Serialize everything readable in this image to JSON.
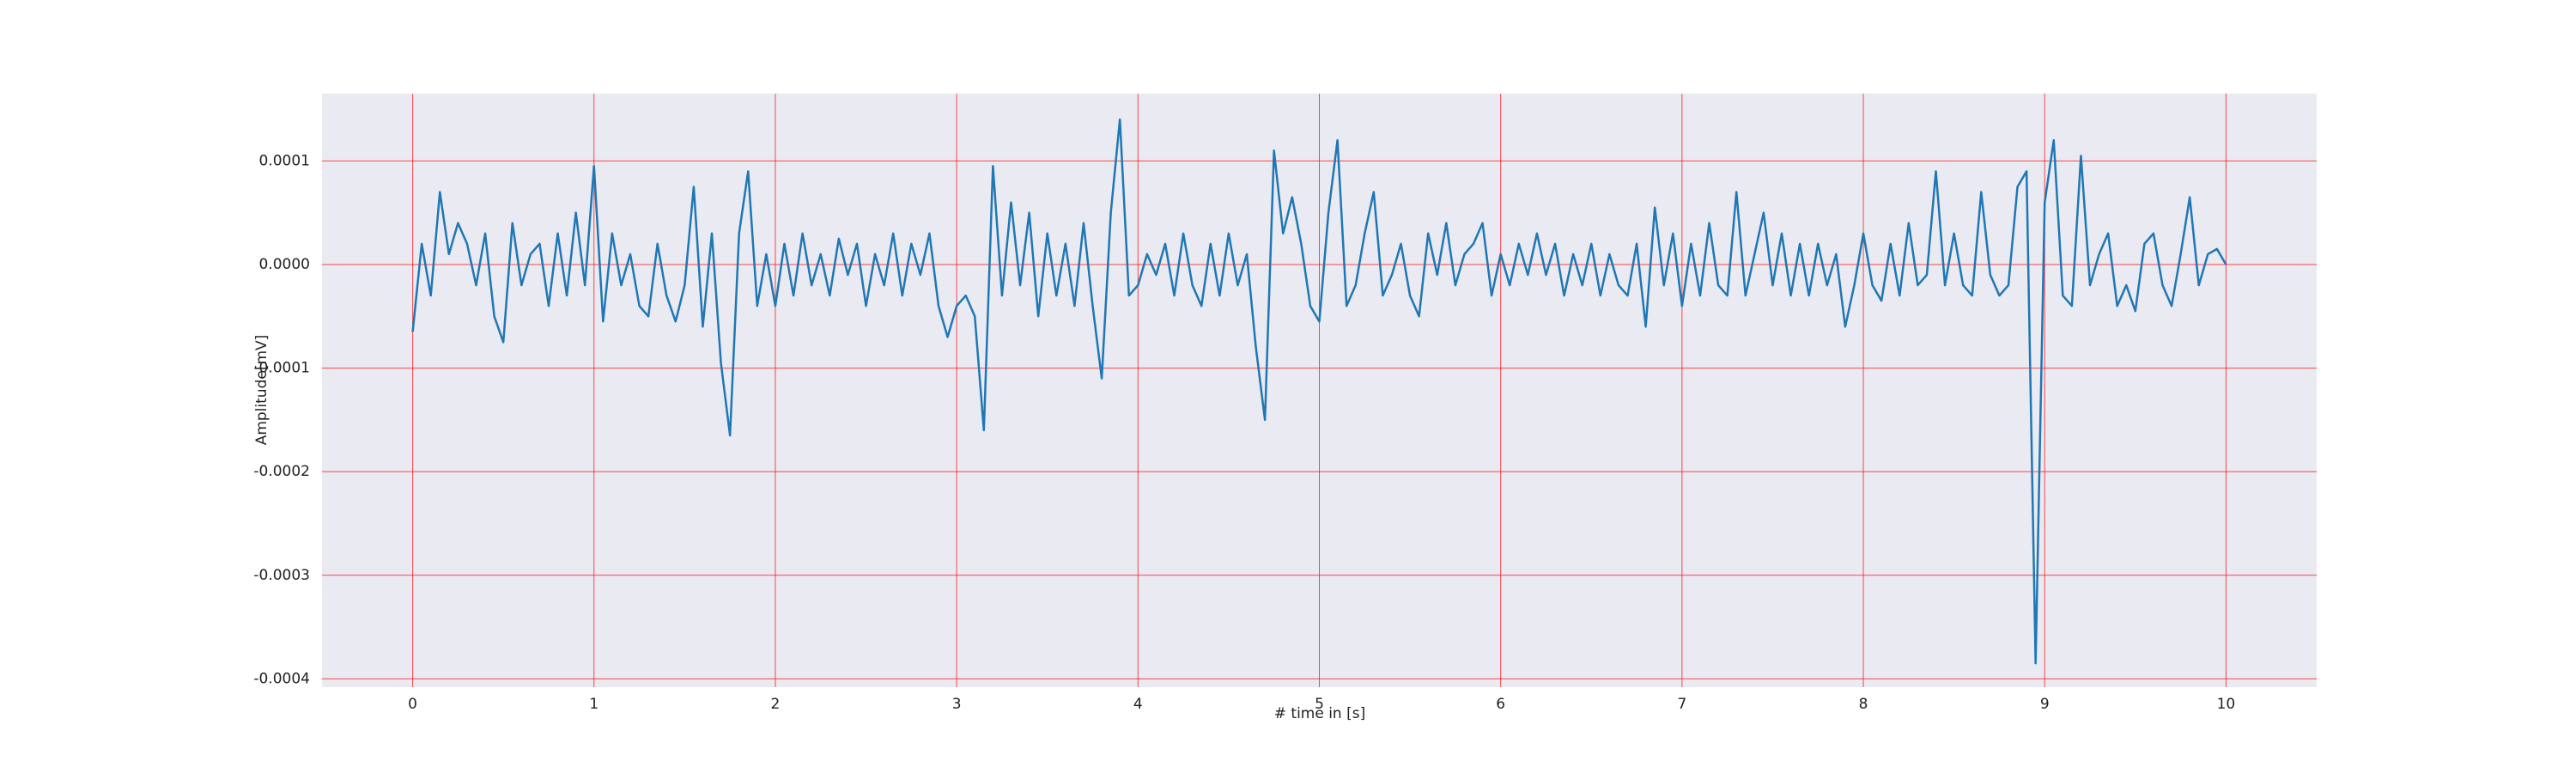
{
  "chart_data": {
    "type": "line",
    "xlabel": "# time in [s]",
    "ylabel": "Amplitude[mV]",
    "x": [
      0,
      0.05,
      0.1,
      0.15,
      0.2,
      0.25,
      0.3,
      0.35,
      0.4,
      0.45,
      0.5,
      0.55,
      0.6,
      0.65,
      0.7,
      0.75,
      0.8,
      0.85,
      0.9,
      0.95,
      1,
      1.05,
      1.1,
      1.15,
      1.2,
      1.25,
      1.3,
      1.35,
      1.4,
      1.45,
      1.5,
      1.55,
      1.6,
      1.65,
      1.7,
      1.75,
      1.8,
      1.85,
      1.9,
      1.95,
      2,
      2.05,
      2.1,
      2.15,
      2.2,
      2.25,
      2.3,
      2.35,
      2.4,
      2.45,
      2.5,
      2.55,
      2.6,
      2.65,
      2.7,
      2.75,
      2.8,
      2.85,
      2.9,
      2.95,
      3,
      3.05,
      3.1,
      3.15,
      3.2,
      3.25,
      3.3,
      3.35,
      3.4,
      3.45,
      3.5,
      3.55,
      3.6,
      3.65,
      3.7,
      3.75,
      3.8,
      3.85,
      3.9,
      3.95,
      4,
      4.05,
      4.1,
      4.15,
      4.2,
      4.25,
      4.3,
      4.35,
      4.4,
      4.45,
      4.5,
      4.55,
      4.6,
      4.65,
      4.7,
      4.75,
      4.8,
      4.85,
      4.9,
      4.95,
      5,
      5.05,
      5.1,
      5.15,
      5.2,
      5.25,
      5.3,
      5.35,
      5.4,
      5.45,
      5.5,
      5.55,
      5.6,
      5.65,
      5.7,
      5.75,
      5.8,
      5.85,
      5.9,
      5.95,
      6,
      6.05,
      6.1,
      6.15,
      6.2,
      6.25,
      6.3,
      6.35,
      6.4,
      6.45,
      6.5,
      6.55,
      6.6,
      6.65,
      6.7,
      6.75,
      6.8,
      6.85,
      6.9,
      6.95,
      7,
      7.05,
      7.1,
      7.15,
      7.2,
      7.25,
      7.3,
      7.35,
      7.4,
      7.45,
      7.5,
      7.55,
      7.6,
      7.65,
      7.7,
      7.75,
      7.8,
      7.85,
      7.9,
      7.95,
      8,
      8.05,
      8.1,
      8.15,
      8.2,
      8.25,
      8.3,
      8.35,
      8.4,
      8.45,
      8.5,
      8.55,
      8.6,
      8.65,
      8.7,
      8.75,
      8.8,
      8.85,
      8.9,
      8.95,
      9,
      9.05,
      9.1,
      9.15,
      9.2,
      9.25,
      9.3,
      9.35,
      9.4,
      9.45,
      9.5,
      9.55,
      9.6,
      9.65,
      9.7,
      9.75,
      9.8,
      9.85,
      9.9,
      9.95,
      10
    ],
    "series": [
      {
        "color": "#1f77b4",
        "values": [
          -6.5e-05,
          2e-05,
          -3e-05,
          7e-05,
          1e-05,
          4e-05,
          2e-05,
          -2e-05,
          3e-05,
          -5e-05,
          -7.5e-05,
          4e-05,
          -2e-05,
          1e-05,
          2e-05,
          -4e-05,
          3e-05,
          -3e-05,
          5e-05,
          -2e-05,
          9.5e-05,
          -5.5e-05,
          3e-05,
          -2e-05,
          1e-05,
          -4e-05,
          -5e-05,
          2e-05,
          -3e-05,
          -5.5e-05,
          -2e-05,
          7.5e-05,
          -6e-05,
          3e-05,
          -9.5e-05,
          -0.000165,
          3e-05,
          9e-05,
          -4e-05,
          1e-05,
          -4e-05,
          2e-05,
          -3e-05,
          3e-05,
          -2e-05,
          1e-05,
          -3e-05,
          2.5e-05,
          -1e-05,
          2e-05,
          -4e-05,
          1e-05,
          -2e-05,
          3e-05,
          -3e-05,
          2e-05,
          -1e-05,
          3e-05,
          -4e-05,
          -7e-05,
          -4e-05,
          -3e-05,
          -5e-05,
          -0.00016,
          9.5e-05,
          -3e-05,
          6e-05,
          -2e-05,
          5e-05,
          -5e-05,
          3e-05,
          -3e-05,
          2e-05,
          -4e-05,
          4e-05,
          -4e-05,
          -0.00011,
          5e-05,
          0.00014,
          -3e-05,
          -2e-05,
          1e-05,
          -1e-05,
          2e-05,
          -3e-05,
          3e-05,
          -2e-05,
          -4e-05,
          2e-05,
          -3e-05,
          3e-05,
          -2e-05,
          1e-05,
          -8e-05,
          -0.00015,
          0.00011,
          3e-05,
          6.5e-05,
          2e-05,
          -4e-05,
          -5.5e-05,
          5e-05,
          0.00012,
          -4e-05,
          -2e-05,
          3e-05,
          7e-05,
          -3e-05,
          -1e-05,
          2e-05,
          -3e-05,
          -5e-05,
          3e-05,
          -1e-05,
          4e-05,
          -2e-05,
          1e-05,
          2e-05,
          4e-05,
          -3e-05,
          1e-05,
          -2e-05,
          2e-05,
          -1e-05,
          3e-05,
          -1e-05,
          2e-05,
          -3e-05,
          1e-05,
          -2e-05,
          2e-05,
          -3e-05,
          1e-05,
          -2e-05,
          -3e-05,
          2e-05,
          -6e-05,
          5.5e-05,
          -2e-05,
          3e-05,
          -4e-05,
          2e-05,
          -3e-05,
          4e-05,
          -2e-05,
          -3e-05,
          7e-05,
          -3e-05,
          1e-05,
          5e-05,
          -2e-05,
          3e-05,
          -3e-05,
          2e-05,
          -3e-05,
          2e-05,
          -2e-05,
          1e-05,
          -6e-05,
          -2e-05,
          3e-05,
          -2e-05,
          -3.5e-05,
          2e-05,
          -3e-05,
          4e-05,
          -2e-05,
          -1e-05,
          9e-05,
          -2e-05,
          3e-05,
          -2e-05,
          -3e-05,
          7e-05,
          -1e-05,
          -3e-05,
          -2e-05,
          7.5e-05,
          9e-05,
          -0.000385,
          6e-05,
          0.00012,
          -3e-05,
          -4e-05,
          0.000105,
          -2e-05,
          1e-05,
          3e-05,
          -4e-05,
          -2e-05,
          -4.5e-05,
          2e-05,
          3e-05,
          -2e-05,
          -4e-05,
          1e-05,
          6.5e-05,
          -2e-05,
          1e-05,
          1.5e-05,
          0
        ]
      }
    ],
    "xlim": [
      -0.5,
      10.5
    ],
    "ylim": [
      -0.000408,
      0.000165
    ],
    "xticks": [
      0,
      1,
      2,
      3,
      4,
      5,
      6,
      7,
      8,
      9,
      10
    ],
    "yticks": [
      {
        "value": 0.0001,
        "label": "0.0001"
      },
      {
        "value": 0,
        "label": "0.0000"
      },
      {
        "value": -0.0001,
        "label": "-0.0001"
      },
      {
        "value": -0.0002,
        "label": "-0.0002"
      },
      {
        "value": -0.0003,
        "label": "-0.0003"
      },
      {
        "value": -0.0004,
        "label": "-0.0004"
      }
    ],
    "grid": true
  }
}
